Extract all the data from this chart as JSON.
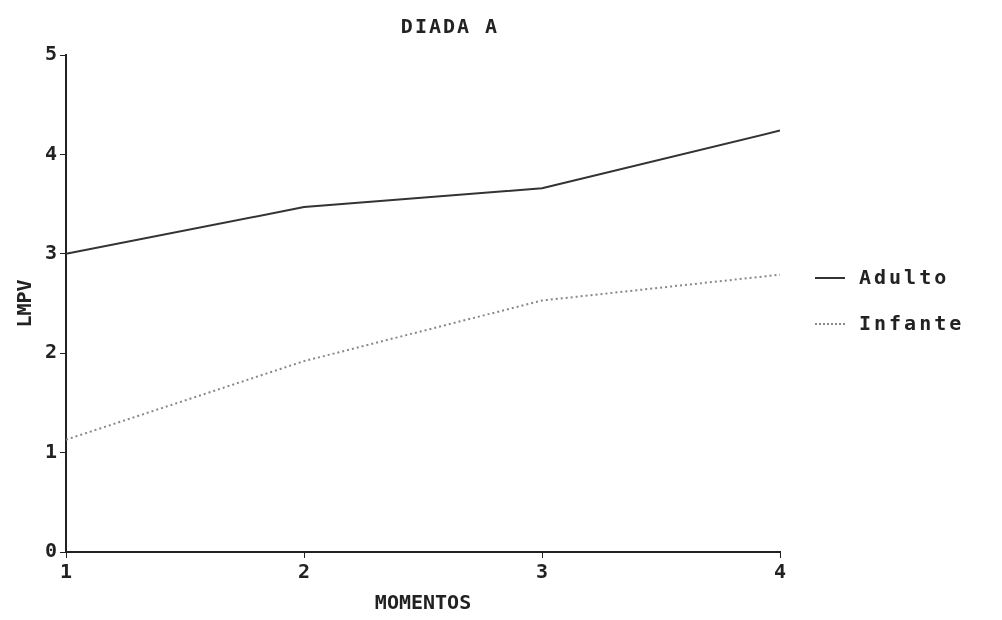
{
  "chart_data": {
    "type": "line",
    "title": "DIADA A",
    "xlabel": "MOMENTOS",
    "ylabel": "LMPV",
    "x": [
      1,
      2,
      3,
      4
    ],
    "xlim": [
      1,
      4
    ],
    "xticks": [
      1,
      2,
      3,
      4
    ],
    "ylim": [
      0,
      5
    ],
    "yticks": [
      0,
      1,
      2,
      3,
      4,
      5
    ],
    "grid": false,
    "legend": "right",
    "marker": "none",
    "series": [
      {
        "name": "Adulto",
        "color": "#333333",
        "line_style": "solid",
        "values": [
          3.0,
          3.47,
          3.66,
          4.24
        ]
      },
      {
        "name": "Infante",
        "color": "#888888",
        "line_style": "dotted",
        "values": [
          1.13,
          1.92,
          2.53,
          2.79
        ]
      }
    ]
  }
}
